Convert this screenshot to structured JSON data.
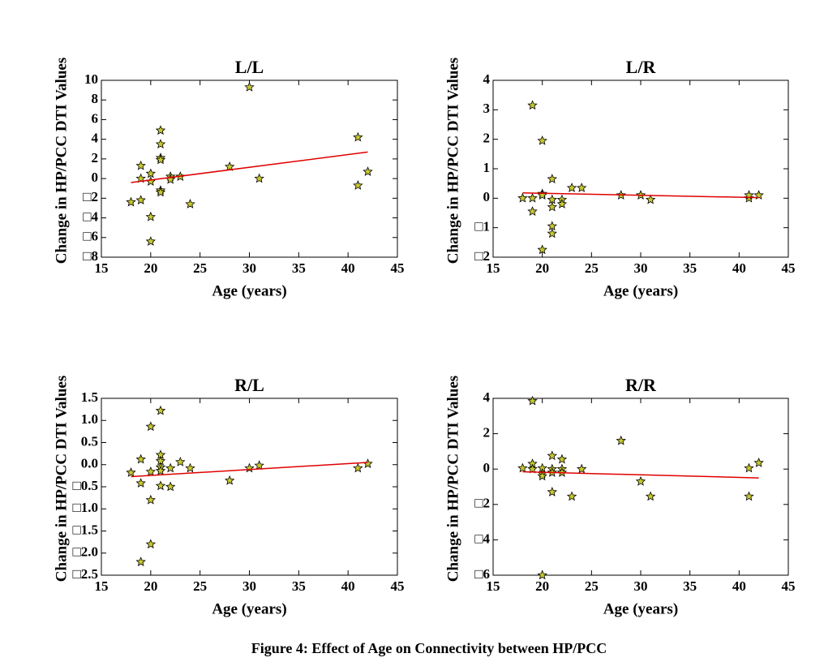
{
  "caption": "Figure 4: Effect of Age on Connectivity between HP/PCC",
  "chart_data": [
    {
      "type": "scatter",
      "title": "L/L",
      "xlabel": "Age (years)",
      "ylabel": "Change in HP/PCC DTI Values",
      "x": [
        18,
        19,
        19,
        19,
        20,
        20,
        20,
        20,
        21,
        21,
        21,
        21,
        21,
        21,
        22,
        22,
        23,
        24,
        28,
        30,
        31,
        41,
        41,
        42
      ],
      "values": [
        -2.4,
        0.0,
        1.3,
        -2.2,
        0.5,
        -0.3,
        -3.9,
        -6.4,
        4.9,
        3.5,
        2.1,
        1.9,
        -1.2,
        -1.4,
        0.2,
        -0.1,
        0.2,
        -2.6,
        1.2,
        9.3,
        0.0,
        4.2,
        -0.7,
        0.7
      ],
      "color": "#c8c832",
      "fit": {
        "x": [
          18,
          42
        ],
        "values": [
          -0.4,
          2.7
        ],
        "color": "#e00000"
      },
      "xlim": [
        15,
        45
      ],
      "ylim": [
        -8,
        10
      ],
      "xticks": [
        15,
        20,
        25,
        30,
        35,
        40,
        45
      ],
      "yticks": [
        {
          "value": -8,
          "label": "□8"
        },
        {
          "value": -6,
          "label": "□6"
        },
        {
          "value": -4,
          "label": "□4"
        },
        {
          "value": -2,
          "label": "□2"
        },
        0,
        2,
        4,
        6,
        8,
        10
      ]
    },
    {
      "type": "scatter",
      "title": "L/R",
      "xlabel": "Age (years)",
      "ylabel": "Change in HP/PCC DTI Values",
      "x": [
        18,
        19,
        19,
        19,
        20,
        20,
        20,
        20,
        21,
        21,
        21,
        21,
        21,
        22,
        22,
        23,
        24,
        28,
        30,
        31,
        41,
        41,
        42
      ],
      "values": [
        0.0,
        3.15,
        0.0,
        -0.45,
        1.95,
        0.15,
        0.1,
        -1.75,
        0.65,
        -0.05,
        -0.3,
        -0.95,
        -1.2,
        -0.05,
        -0.2,
        0.35,
        0.35,
        0.1,
        0.1,
        -0.05,
        0.0,
        0.1,
        0.1
      ],
      "color": "#c8c832",
      "fit": {
        "x": [
          18,
          42
        ],
        "values": [
          0.18,
          0.02
        ],
        "color": "#e00000"
      },
      "xlim": [
        15,
        45
      ],
      "ylim": [
        -2,
        4
      ],
      "xticks": [
        15,
        20,
        25,
        30,
        35,
        40,
        45
      ],
      "yticks": [
        {
          "value": -2,
          "label": "□2"
        },
        {
          "value": -1,
          "label": "□1"
        },
        0,
        1,
        2,
        3,
        4
      ]
    },
    {
      "type": "scatter",
      "title": "R/L",
      "xlabel": "Age (years)",
      "ylabel": "Change in HP/PCC DTI Values",
      "x": [
        18,
        19,
        19,
        19,
        20,
        20,
        20,
        20,
        21,
        21,
        21,
        21,
        21,
        21,
        22,
        22,
        23,
        24,
        28,
        30,
        31,
        41,
        42
      ],
      "values": [
        -0.18,
        0.12,
        -0.42,
        -2.2,
        0.86,
        -0.16,
        -0.8,
        -1.8,
        1.22,
        0.22,
        0.08,
        -0.06,
        -0.14,
        -0.48,
        -0.08,
        -0.5,
        0.06,
        -0.08,
        -0.36,
        -0.08,
        -0.02,
        -0.08,
        0.02
      ],
      "color": "#c8c832",
      "fit": {
        "x": [
          18,
          42
        ],
        "values": [
          -0.27,
          0.05
        ],
        "color": "#e00000"
      },
      "xlim": [
        15,
        45
      ],
      "ylim": [
        -2.5,
        1.5
      ],
      "xticks": [
        15,
        20,
        25,
        30,
        35,
        40,
        45
      ],
      "yticks": [
        {
          "value": -2.5,
          "label": "□2.5"
        },
        {
          "value": -2,
          "label": "□2.0"
        },
        {
          "value": -1.5,
          "label": "□1.5"
        },
        {
          "value": -1,
          "label": "□1.0"
        },
        {
          "value": -0.5,
          "label": "□0.5"
        },
        {
          "value": 0,
          "label": "0.0"
        },
        0.5,
        {
          "value": 1,
          "label": "1.0"
        },
        1.5
      ]
    },
    {
      "type": "scatter",
      "title": "R/R",
      "xlabel": "Age (years)",
      "ylabel": "Change in HP/PCC DTI Values",
      "x": [
        18,
        19,
        19,
        19,
        20,
        20,
        20,
        20,
        21,
        21,
        21,
        21,
        22,
        22,
        22,
        23,
        24,
        28,
        30,
        31,
        41,
        41,
        42
      ],
      "values": [
        0.05,
        3.85,
        0.3,
        0.0,
        0.05,
        -0.25,
        -0.4,
        -6.0,
        0.75,
        0.0,
        -0.2,
        -1.3,
        0.55,
        0.0,
        -0.2,
        -1.55,
        0.0,
        1.6,
        -0.7,
        -1.55,
        0.05,
        -1.55,
        0.35
      ],
      "color": "#c8c832",
      "fit": {
        "x": [
          18,
          42
        ],
        "values": [
          -0.15,
          -0.5
        ],
        "color": "#e00000"
      },
      "xlim": [
        15,
        45
      ],
      "ylim": [
        -6,
        4
      ],
      "xticks": [
        15,
        20,
        25,
        30,
        35,
        40,
        45
      ],
      "yticks": [
        {
          "value": -6,
          "label": "□6"
        },
        {
          "value": -4,
          "label": "□4"
        },
        {
          "value": -2,
          "label": "□2"
        },
        0,
        2,
        4
      ]
    }
  ]
}
